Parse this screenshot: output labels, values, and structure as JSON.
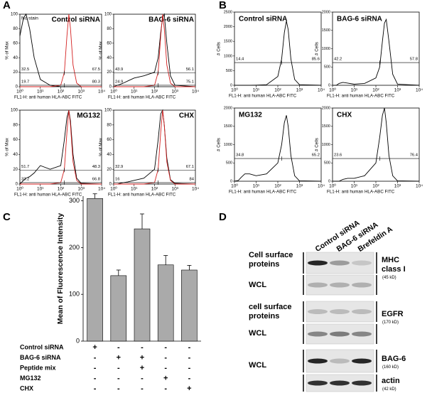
{
  "panels": {
    "labels": [
      "A",
      "B",
      "C",
      "D"
    ]
  },
  "chart_data": [
    {
      "type": "line",
      "title": "Control siRNA",
      "annotation": "No stain",
      "xlabel": "FL1-H: anti human HLA-ABC FITC",
      "ylabel": "% of Max",
      "xscale": "log",
      "x": [
        1,
        1.5,
        2,
        3,
        5,
        10,
        30,
        100,
        150,
        200,
        250,
        300,
        400,
        600,
        1000,
        10000
      ],
      "xlim": [
        1,
        10000
      ],
      "xticks": [
        {
          "value": 1,
          "label": "10⁰"
        },
        {
          "value": 10,
          "label": "10¹"
        },
        {
          "value": 100,
          "label": "10²"
        },
        {
          "value": 1000,
          "label": "10³"
        },
        {
          "value": 10000,
          "label": "10⁴"
        }
      ],
      "ylim": [
        0,
        100
      ],
      "yticks": [
        0,
        20,
        40,
        60,
        80,
        100
      ],
      "series": [
        {
          "color": "#000000",
          "values": [
            70,
            95,
            100,
            80,
            40,
            10,
            2,
            0,
            0,
            0,
            0,
            0,
            0,
            0,
            0,
            0
          ]
        },
        {
          "color": "#d42020",
          "values": [
            0,
            0,
            0,
            0,
            0,
            0,
            0,
            2,
            20,
            70,
            100,
            80,
            30,
            5,
            0,
            0
          ]
        }
      ],
      "gates": [
        {
          "split": 150,
          "values": [
            32.5,
            67.5
          ]
        },
        {
          "split": 150,
          "values": [
            19.7,
            80.3
          ]
        }
      ]
    },
    {
      "type": "line",
      "title": "BAG-6 siRNA",
      "xlabel": "FL1-H: anti human HLA-ABC FITC",
      "ylabel": "% of Max",
      "xscale": "log",
      "x": [
        1,
        1.5,
        2,
        3,
        5,
        10,
        30,
        100,
        150,
        200,
        250,
        300,
        400,
        600,
        1000,
        10000
      ],
      "xlim": [
        1,
        10000
      ],
      "xticks": [
        {
          "value": 1,
          "label": "10⁰"
        },
        {
          "value": 10,
          "label": "10¹"
        },
        {
          "value": 100,
          "label": "10²"
        },
        {
          "value": 1000,
          "label": "10³"
        },
        {
          "value": 10000,
          "label": "10⁴"
        }
      ],
      "ylim": [
        0,
        100
      ],
      "yticks": [
        0,
        20,
        40,
        60,
        80,
        100
      ],
      "series": [
        {
          "color": "#000000",
          "values": [
            0,
            2,
            3,
            5,
            8,
            12,
            15,
            20,
            40,
            75,
            95,
            100,
            60,
            15,
            2,
            0
          ]
        },
        {
          "color": "#d42020",
          "values": [
            0,
            0,
            0,
            0,
            0,
            0,
            0,
            2,
            20,
            70,
            100,
            80,
            30,
            5,
            0,
            0
          ]
        }
      ],
      "gates": [
        {
          "split": 150,
          "values": [
            43.9,
            56.1
          ]
        },
        {
          "split": 150,
          "values": [
            24.9,
            75.1
          ]
        }
      ]
    },
    {
      "type": "line",
      "title": "MG132",
      "xlabel": "FL1-H: anti human HLA-ABC FITC",
      "ylabel": "% of Max",
      "xscale": "log",
      "x": [
        1,
        1.5,
        2,
        3,
        5,
        10,
        30,
        100,
        150,
        200,
        250,
        300,
        400,
        600,
        1000,
        10000
      ],
      "xlim": [
        1,
        10000
      ],
      "xticks": [
        {
          "value": 1,
          "label": "10⁰"
        },
        {
          "value": 10,
          "label": "10¹"
        },
        {
          "value": 100,
          "label": "10²"
        },
        {
          "value": 1000,
          "label": "10³"
        },
        {
          "value": 10000,
          "label": "10⁴"
        }
      ],
      "ylim": [
        0,
        100
      ],
      "yticks": [
        0,
        20,
        40,
        60,
        80,
        100
      ],
      "series": [
        {
          "color": "#000000",
          "values": [
            0,
            5,
            8,
            10,
            15,
            25,
            20,
            25,
            60,
            90,
            100,
            85,
            40,
            8,
            1,
            0
          ]
        },
        {
          "color": "#d42020",
          "values": [
            0,
            0,
            0,
            0,
            0,
            0,
            0,
            2,
            20,
            70,
            100,
            80,
            30,
            5,
            0,
            0
          ]
        }
      ],
      "gates": [
        {
          "split": 150,
          "values": [
            51.7,
            48.3
          ]
        },
        {
          "split": 150,
          "values": [
            33.2,
            66.8
          ]
        }
      ]
    },
    {
      "type": "line",
      "title": "CHX",
      "xlabel": "FL1-H: anti human HLA-ABC FITC",
      "ylabel": "% of Max",
      "xscale": "log",
      "x": [
        1,
        1.5,
        2,
        3,
        5,
        10,
        30,
        100,
        150,
        200,
        250,
        300,
        400,
        600,
        1000,
        10000
      ],
      "xlim": [
        1,
        10000
      ],
      "xticks": [
        {
          "value": 1,
          "label": "10⁰"
        },
        {
          "value": 10,
          "label": "10¹"
        },
        {
          "value": 100,
          "label": "10²"
        },
        {
          "value": 1000,
          "label": "10³"
        },
        {
          "value": 10000,
          "label": "10⁴"
        }
      ],
      "ylim": [
        0,
        100
      ],
      "yticks": [
        0,
        20,
        40,
        60,
        80,
        100
      ],
      "series": [
        {
          "color": "#000000",
          "values": [
            0,
            0,
            1,
            2,
            3,
            5,
            8,
            20,
            60,
            95,
            100,
            80,
            35,
            6,
            1,
            0
          ]
        },
        {
          "color": "#d42020",
          "values": [
            0,
            0,
            0,
            0,
            0,
            0,
            0,
            2,
            20,
            70,
            100,
            80,
            30,
            5,
            0,
            0
          ]
        }
      ],
      "gates": [
        {
          "split": 150,
          "values": [
            32.9,
            67.1
          ]
        },
        {
          "split": 150,
          "values": [
            16,
            84
          ]
        }
      ]
    },
    {
      "type": "line",
      "title": "Control siRNA",
      "xlabel": "FL1-H: anti human HLA-ABC FITC",
      "ylabel": "# Cells",
      "xscale": "log",
      "x": [
        1,
        1.5,
        2,
        3,
        5,
        10,
        30,
        100,
        150,
        200,
        250,
        300,
        400,
        600,
        1000,
        10000
      ],
      "xlim": [
        1,
        10000
      ],
      "xticks": [
        {
          "value": 1,
          "label": "10⁰"
        },
        {
          "value": 10,
          "label": "10¹"
        },
        {
          "value": 100,
          "label": "10²"
        },
        {
          "value": 1000,
          "label": "10³"
        },
        {
          "value": 10000,
          "label": "10⁴"
        }
      ],
      "ylim": [
        0,
        2500
      ],
      "yticks": [
        0,
        500,
        1000,
        1500,
        2000,
        2500
      ],
      "series": [
        {
          "color": "#000000",
          "values": [
            0,
            0,
            0,
            0,
            0,
            5,
            20,
            300,
            900,
            1800,
            2200,
            1900,
            900,
            200,
            20,
            0
          ]
        }
      ],
      "gates": [
        {
          "split": 150,
          "values": [
            14.4,
            85.6
          ]
        }
      ]
    },
    {
      "type": "line",
      "title": "BAG-6 siRNA",
      "xlabel": "FL1-H: anti human HLA-ABC FITC",
      "ylabel": "# Cells",
      "xscale": "log",
      "x": [
        1,
        1.5,
        2,
        3,
        5,
        10,
        30,
        100,
        150,
        200,
        250,
        300,
        400,
        600,
        1000,
        10000
      ],
      "xlim": [
        1,
        10000
      ],
      "xticks": [
        {
          "value": 1,
          "label": "10⁰"
        },
        {
          "value": 10,
          "label": "10¹"
        },
        {
          "value": 100,
          "label": "10²"
        },
        {
          "value": 1000,
          "label": "10³"
        },
        {
          "value": 10000,
          "label": "10⁴"
        }
      ],
      "ylim": [
        0,
        2000
      ],
      "yticks": [
        0,
        500,
        1000,
        1500,
        2000
      ],
      "series": [
        {
          "color": "#000000",
          "values": [
            0,
            0,
            50,
            80,
            60,
            30,
            50,
            200,
            500,
            1200,
            1700,
            1800,
            1200,
            300,
            30,
            0
          ]
        }
      ],
      "gates": [
        {
          "split": 150,
          "values": [
            42.2,
            57.8
          ]
        }
      ]
    },
    {
      "type": "line",
      "title": "MG132",
      "xlabel": "FL1-H: anti human HLA-ABC FITC",
      "ylabel": "# Cells",
      "xscale": "log",
      "x": [
        1,
        1.5,
        2,
        3,
        5,
        10,
        30,
        100,
        150,
        200,
        250,
        300,
        400,
        600,
        1000,
        10000
      ],
      "xlim": [
        1,
        10000
      ],
      "xticks": [
        {
          "value": 1,
          "label": "10⁰"
        },
        {
          "value": 10,
          "label": "10¹"
        },
        {
          "value": 100,
          "label": "10²"
        },
        {
          "value": 1000,
          "label": "10³"
        },
        {
          "value": 10000,
          "label": "10⁴"
        }
      ],
      "ylim": [
        0,
        2000
      ],
      "yticks": [
        0,
        500,
        1000,
        1500,
        2000
      ],
      "series": [
        {
          "color": "#000000",
          "values": [
            0,
            20,
            100,
            200,
            200,
            150,
            200,
            500,
            1000,
            1600,
            1800,
            1500,
            700,
            150,
            10,
            0
          ]
        }
      ],
      "gates": [
        {
          "split": 150,
          "values": [
            34.8,
            65.2
          ]
        }
      ]
    },
    {
      "type": "line",
      "title": "CHX",
      "xlabel": "FL1-H: anti human HLA-ABC FITC",
      "ylabel": "# Cells",
      "xscale": "log",
      "x": [
        1,
        1.5,
        2,
        3,
        5,
        10,
        30,
        100,
        150,
        200,
        250,
        300,
        400,
        600,
        1000,
        10000
      ],
      "xlim": [
        1,
        10000
      ],
      "xticks": [
        {
          "value": 1,
          "label": "10⁰"
        },
        {
          "value": 10,
          "label": "10¹"
        },
        {
          "value": 100,
          "label": "10²"
        },
        {
          "value": 1000,
          "label": "10³"
        },
        {
          "value": 10000,
          "label": "10⁴"
        }
      ],
      "ylim": [
        0,
        2000
      ],
      "yticks": [
        0,
        500,
        1000,
        1500,
        2000
      ],
      "series": [
        {
          "color": "#000000",
          "values": [
            0,
            0,
            0,
            50,
            80,
            80,
            150,
            500,
            1200,
            1800,
            2000,
            1600,
            700,
            150,
            10,
            0
          ]
        }
      ],
      "gates": [
        {
          "split": 150,
          "values": [
            23.6,
            76.4
          ]
        }
      ]
    },
    {
      "type": "bar",
      "ylabel": "Mean of Fluorescence Intensity",
      "color": "#aaaaaa",
      "values": [
        305,
        140,
        240,
        163,
        152
      ],
      "errors": [
        10,
        12,
        32,
        20,
        10
      ],
      "ylim": [
        0,
        310
      ],
      "yticks": [
        0,
        100,
        200,
        300
      ],
      "conditions": [
        {
          "label": "Control siRNA",
          "signs": [
            "+",
            "-",
            "-",
            "-",
            "-"
          ]
        },
        {
          "label": "BAG-6 siRNA",
          "signs": [
            "-",
            "+",
            "+",
            "-",
            "-"
          ]
        },
        {
          "label": "Peptide mix",
          "signs": [
            "-",
            "-",
            "+",
            "-",
            "-"
          ]
        },
        {
          "label": "MG132",
          "signs": [
            "-",
            "-",
            "-",
            "+",
            "-"
          ]
        },
        {
          "label": "CHX",
          "signs": [
            "-",
            "-",
            "-",
            "-",
            "+"
          ]
        }
      ]
    }
  ],
  "western_blot": {
    "columns": [
      "Control siRNA",
      "BAG-6 siRNA",
      "Brefeldin A"
    ],
    "row_labels": [
      "Cell surface proteins",
      "WCL",
      "cell surface proteins",
      "WCL",
      "WCL"
    ],
    "proteins": [
      {
        "name": "MHC class I",
        "size": "(45 kD)"
      },
      {
        "name": "EGFR",
        "size": "(170 kD)"
      },
      {
        "name": "BAG-6",
        "size": "(160 kD)"
      },
      {
        "name": "actin",
        "size": "(42 kD)"
      }
    ]
  }
}
